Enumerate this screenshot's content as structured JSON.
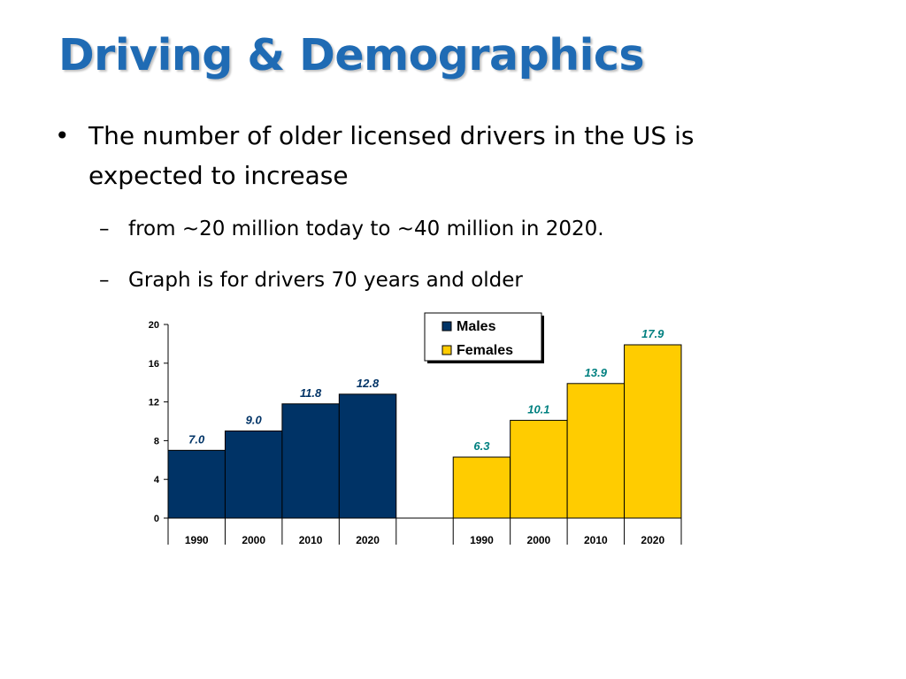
{
  "slide": {
    "title": "Driving & Demographics",
    "bullets": [
      {
        "marker": "•",
        "text": "The number of older licensed drivers in the US is expected to increase",
        "subbullets": [
          {
            "marker": "–",
            "text": "from ~20 million today to ~40 million in 2020."
          },
          {
            "marker": "–",
            "text": "Graph is for drivers 70 years and older"
          }
        ]
      }
    ]
  },
  "chart_data": {
    "type": "bar",
    "title": "",
    "xlabel": "",
    "ylabel": "",
    "ylim": [
      0,
      20
    ],
    "yticks": [
      0,
      4,
      8,
      12,
      16,
      20
    ],
    "grid": false,
    "legend_position": "top-center",
    "series": [
      {
        "name": "Males",
        "color": "#003366",
        "label_color": "#003366",
        "categories": [
          "1990",
          "2000",
          "2010",
          "2020"
        ],
        "values": [
          7.0,
          9.0,
          11.8,
          12.8
        ],
        "labels": [
          "7.0",
          "9.0",
          "11.8",
          "12.8"
        ]
      },
      {
        "name": "Females",
        "color": "#ffcc00",
        "label_color": "#008080",
        "categories": [
          "1990",
          "2000",
          "2010",
          "2020"
        ],
        "values": [
          6.3,
          10.1,
          13.9,
          17.9
        ],
        "labels": [
          "6.3",
          "10.1",
          "13.9",
          "17.9"
        ]
      }
    ]
  }
}
